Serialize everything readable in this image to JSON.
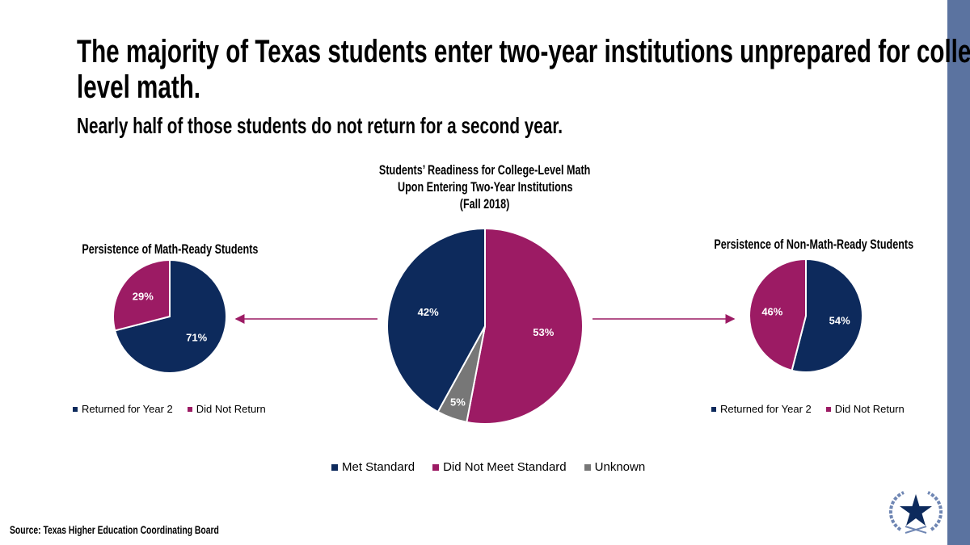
{
  "title_line1": "The majority of Texas students enter two-year institutions unprepared for college-",
  "title_line2": "level math.",
  "subtitle": "Nearly half of those students do not return for a second year.",
  "source": "Source: Texas Higher Education Coordinating Board",
  "colors": {
    "navy": "#0d2a5c",
    "magenta": "#9c1b64",
    "gray": "#777777",
    "accent_bar": "#5b73a0"
  },
  "chart_data": [
    {
      "type": "pie",
      "title": "Persistence of Math-Ready Students",
      "categories": [
        "Returned for Year 2",
        "Did Not Return"
      ],
      "values": [
        71,
        29
      ],
      "labels": [
        "71%",
        "29%"
      ],
      "colors": [
        "#0d2a5c",
        "#9c1b64"
      ],
      "legend": "bottom"
    },
    {
      "type": "pie",
      "title_lines": [
        "Students’ Readiness for College-Level Math",
        "Upon Entering Two-Year Institutions",
        "(Fall 2018)"
      ],
      "categories": [
        "Did Not Meet Standard",
        "Unknown",
        "Met Standard"
      ],
      "values": [
        53,
        5,
        42
      ],
      "labels": [
        "53%",
        "5%",
        "42%"
      ],
      "colors": [
        "#9c1b64",
        "#777777",
        "#0d2a5c"
      ],
      "legend_order": [
        "Met Standard",
        "Did Not Meet Standard",
        "Unknown"
      ],
      "legend_colors": [
        "#0d2a5c",
        "#9c1b64",
        "#777777"
      ],
      "legend": "bottom"
    },
    {
      "type": "pie",
      "title": "Persistence of Non-Math-Ready Students",
      "categories": [
        "Returned for Year 2",
        "Did Not Return"
      ],
      "values": [
        54,
        46
      ],
      "labels": [
        "54%",
        "46%"
      ],
      "colors": [
        "#0d2a5c",
        "#9c1b64"
      ],
      "legend": "bottom"
    }
  ]
}
